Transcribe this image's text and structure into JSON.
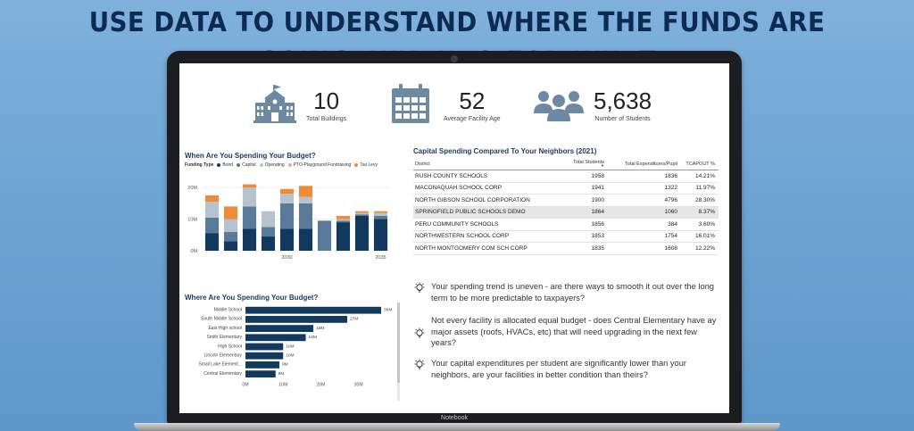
{
  "headline": "USE DATA TO UNDERSTAND WHERE THE FUNDS ARE GOING, WHEN, & FOR WHAT",
  "laptop_brand": "Notebook",
  "kpis": [
    {
      "icon": "school-building-icon",
      "value": "10",
      "label": "Total Buildings"
    },
    {
      "icon": "calendar-icon",
      "value": "52",
      "label": "Average Facility Age"
    },
    {
      "icon": "students-group-icon",
      "value": "5,638",
      "label": "Number of Students"
    }
  ],
  "colors": {
    "bond": "#12395e",
    "capital": "#5a7a99",
    "operating": "#b6c3cf",
    "pto": "#f0a87a",
    "tax_levy": "#ef8b34",
    "kpi_icon": "#6e8aa3",
    "highlight_row": "#e6e6e6"
  },
  "spending_when": {
    "title": "When Are You Spending Your Budget?",
    "legend_title": "Funding Type",
    "legend": [
      {
        "name": "Bond",
        "color": "#12395e"
      },
      {
        "name": "Capital",
        "color": "#5a7a99"
      },
      {
        "name": "Operating",
        "color": "#b6c3cf"
      },
      {
        "name": "PTO-Playground Fundraising",
        "color": "#f0a87a"
      },
      {
        "name": "Tax Levy",
        "color": "#ef8b34"
      }
    ]
  },
  "spending_where": {
    "title": "Where Are You Spending Your Budget?"
  },
  "chart_data": [
    {
      "type": "bar",
      "stacked": true,
      "title": "When Are You Spending Your Budget?",
      "x": [
        2026,
        2027,
        2028,
        2029,
        2030,
        2031,
        2032,
        2033,
        2034,
        2035
      ],
      "x_tick_labels": [
        "2030",
        "2035"
      ],
      "y_tick_labels": [
        "0M",
        "10M",
        "20M"
      ],
      "ylim": [
        0,
        22
      ],
      "grid": true,
      "legend_position": "top",
      "series": [
        {
          "name": "Bond",
          "values": [
            5.5,
            3,
            7,
            4.5,
            7,
            7,
            0,
            9,
            11,
            10
          ]
        },
        {
          "name": "Capital",
          "values": [
            5,
            3,
            7,
            3,
            8,
            8,
            9.5,
            0.5,
            0.5,
            1
          ]
        },
        {
          "name": "Operating",
          "values": [
            5,
            4,
            6,
            5,
            3,
            2,
            0,
            0.5,
            0.5,
            1
          ]
        },
        {
          "name": "PTO-Playground Fundraising",
          "values": [
            0,
            0,
            0,
            0,
            0,
            0,
            0,
            0,
            0,
            0
          ]
        },
        {
          "name": "Tax Levy",
          "values": [
            2,
            4,
            1,
            0,
            1.5,
            3.5,
            0,
            1,
            0.5,
            0.5
          ]
        }
      ]
    },
    {
      "type": "bar",
      "orientation": "horizontal",
      "title": "Where Are You Spending Your Budget?",
      "categories": [
        "Middle School",
        "South Middle School",
        "East High school",
        "Smith Elementary",
        "High School",
        "Lincoln Elementary",
        "Small Lake Element...",
        "Central Elementary"
      ],
      "values": [
        36,
        27,
        18,
        16,
        10,
        10,
        9,
        8
      ],
      "value_labels": [
        "36M",
        "27M",
        "18M",
        "16M",
        "10M",
        "10M",
        "9M",
        "8M"
      ],
      "x_tick_labels": [
        "0M",
        "10M",
        "20M",
        "30M"
      ],
      "xlim": [
        0,
        36
      ]
    }
  ],
  "neighbors_table": {
    "title": "Capital Spending Compared To Your Neighbors (2021)",
    "columns": [
      "District",
      "Total Students",
      "Total Expenditures/Pupil",
      "TCAPOUT %"
    ],
    "rows": [
      [
        "RUSH COUNTY SCHOOLS",
        "1958",
        "1836",
        "14.21%"
      ],
      [
        "MACONAQUAH SCHOOL CORP",
        "1941",
        "1322",
        "11.97%"
      ],
      [
        "NORTH GIBSON SCHOOL CORPORATION",
        "1900",
        "4796",
        "28.30%"
      ],
      [
        "SPRINGFIELD PUBLIC SCHOOLS DEMO",
        "1864",
        "1060",
        "8.37%"
      ],
      [
        "PERU COMMUNITY SCHOOLS",
        "1856",
        "384",
        "3.60%"
      ],
      [
        "NORTHWESTERN SCHOOL CORP",
        "1853",
        "1754",
        "16.01%"
      ],
      [
        "NORTH MONTGOMERY COM SCH CORP",
        "1835",
        "1608",
        "12.22%"
      ]
    ],
    "highlighted_row": 3
  },
  "insights": [
    {
      "icon": "lightbulb-icon",
      "text": "Your spending trend is uneven - are there ways to smooth it out over the long term to be more predictable to taxpayers?"
    },
    {
      "icon": "lightbulb-icon",
      "text": "Not every facility is allocated equal budget - does Central Elementary have ay major assets (roofs, HVACs, etc) that will need upgrading in the next few years?"
    },
    {
      "icon": "lightbulb-icon",
      "text": "Your capital expenditures per student are significantly lower than your neighbors, are your facilities in better condition than theirs?"
    }
  ]
}
